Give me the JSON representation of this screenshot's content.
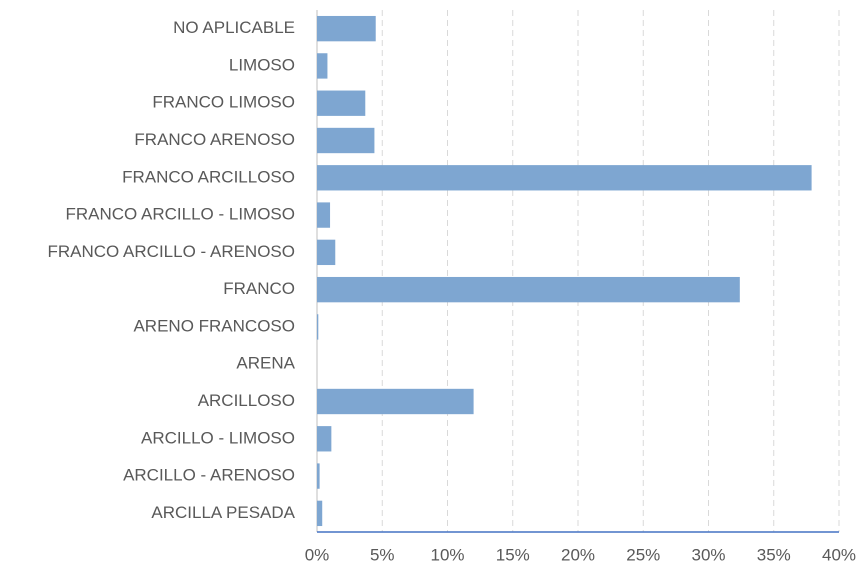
{
  "chart_data": {
    "type": "bar",
    "orientation": "horizontal",
    "categories": [
      "NO APLICABLE",
      "LIMOSO",
      "FRANCO LIMOSO",
      "FRANCO ARENOSO",
      "FRANCO ARCILLOSO",
      "FRANCO ARCILLO - LIMOSO",
      "FRANCO ARCILLO - ARENOSO",
      "FRANCO",
      "ARENO FRANCOSO",
      "ARENA",
      "ARCILLOSO",
      "ARCILLO - LIMOSO",
      "ARCILLO - ARENOSO",
      "ARCILLA PESADA"
    ],
    "values": [
      4.5,
      0.8,
      3.7,
      4.4,
      37.9,
      1.0,
      1.4,
      32.4,
      0.1,
      0,
      12.0,
      1.1,
      0.2,
      0.4
    ],
    "color": "#7ea6d1",
    "xlim": [
      0,
      40
    ],
    "xticks": [
      {
        "value": 0,
        "label": "0%"
      },
      {
        "value": 5,
        "label": "5%"
      },
      {
        "value": 10,
        "label": "10%"
      },
      {
        "value": 15,
        "label": "15%"
      },
      {
        "value": 20,
        "label": "20%"
      },
      {
        "value": 25,
        "label": "25%"
      },
      {
        "value": 30,
        "label": "30%"
      },
      {
        "value": 35,
        "label": "35%"
      },
      {
        "value": 40,
        "label": "40%"
      }
    ],
    "grid": true
  }
}
